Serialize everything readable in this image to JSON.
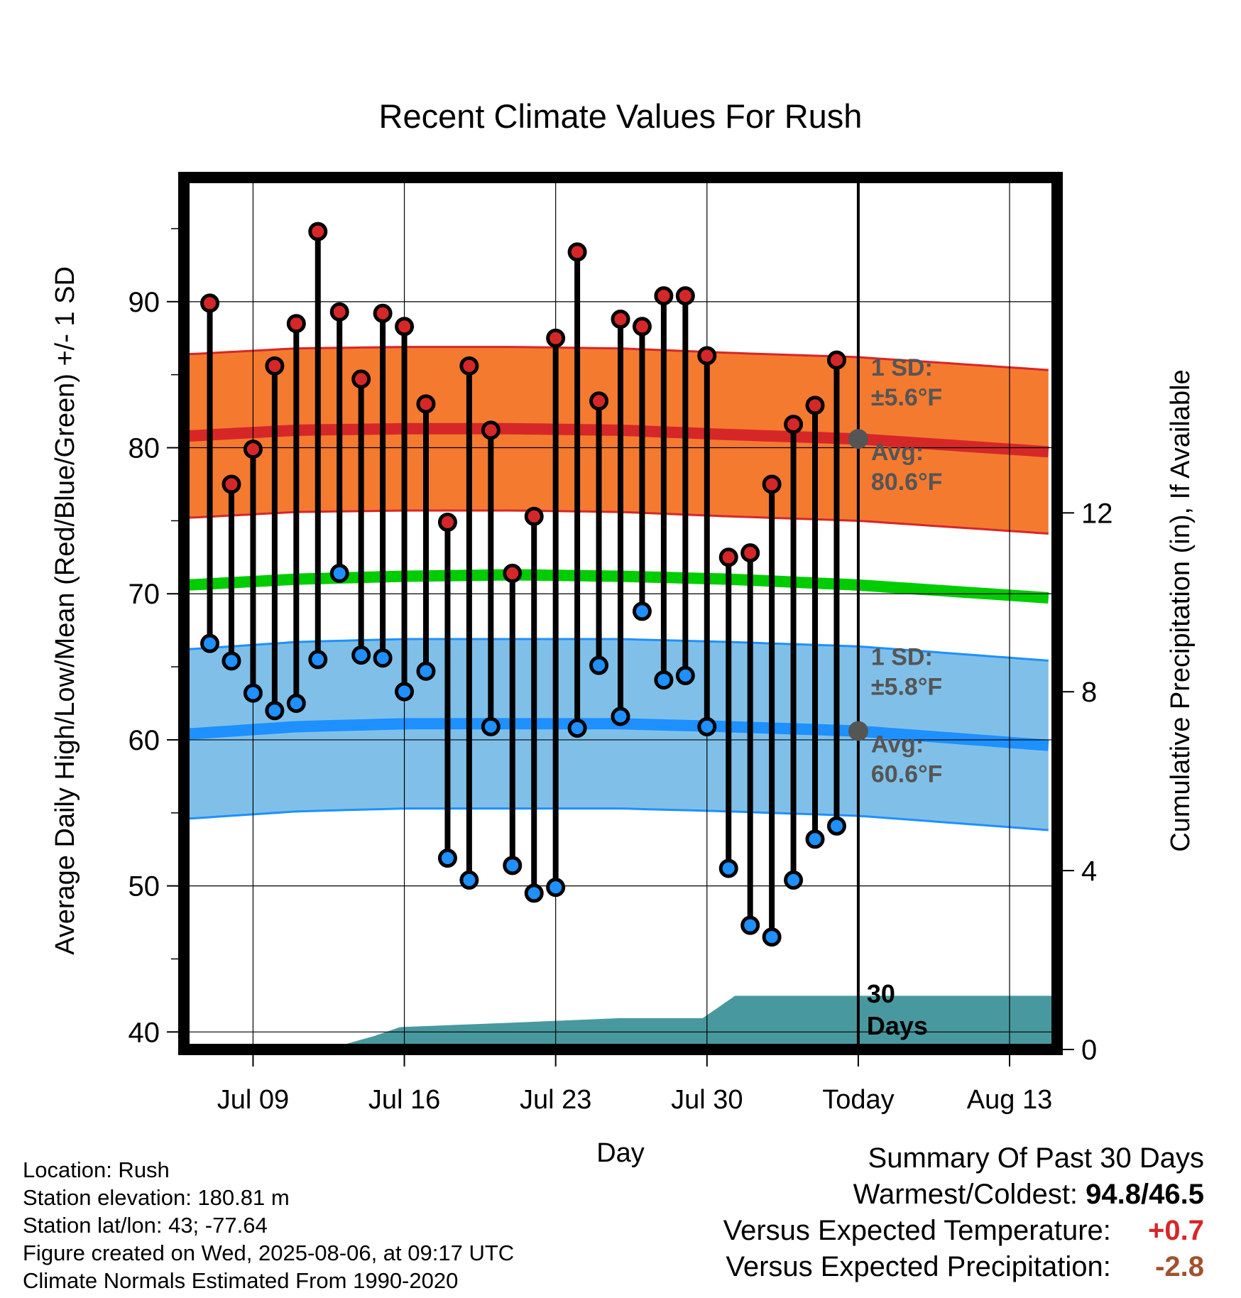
{
  "chart_data": {
    "type": "line",
    "title": "Recent Climate Values For Rush",
    "xlabel": "Day",
    "ylabel": "Average Daily High/Low/Mean (Red/Blue/Green) +/- 1 SD",
    "ylabel_right": "Cumulative Precipitation (in), If Available",
    "x_ticks": [
      {
        "day": 3,
        "label": "Jul 09"
      },
      {
        "day": 10,
        "label": "Jul 16"
      },
      {
        "day": 17,
        "label": "Jul 23"
      },
      {
        "day": 24,
        "label": "Jul 30"
      },
      {
        "day": 31,
        "label": "Today"
      },
      {
        "day": 38,
        "label": "Aug 13"
      }
    ],
    "xlim": [
      -0.2,
      40.2
    ],
    "ylim": [
      38.8,
      98.5
    ],
    "y_ticks": [
      40,
      50,
      60,
      70,
      80,
      90
    ],
    "y2lim": [
      0,
      19.5
    ],
    "y2_ticks": [
      0,
      4,
      8,
      12
    ],
    "grid": true,
    "today_day": 31,
    "today_label": "30\nDays",
    "high_temps": [
      89.9,
      77.5,
      79.9,
      85.6,
      88.5,
      94.8,
      89.3,
      84.7,
      89.2,
      88.3,
      83.0,
      74.9,
      85.6,
      81.2,
      71.4,
      75.3,
      87.5,
      93.4,
      83.2,
      88.8,
      88.3,
      90.4,
      90.4,
      86.3,
      72.5,
      72.8,
      77.5,
      81.6,
      82.9,
      86.0
    ],
    "low_temps": [
      66.6,
      65.4,
      63.2,
      62.0,
      62.5,
      65.5,
      71.4,
      65.8,
      65.6,
      63.3,
      64.7,
      51.9,
      50.4,
      60.9,
      51.4,
      49.5,
      49.9,
      60.8,
      65.1,
      61.6,
      68.8,
      64.1,
      64.4,
      60.9,
      51.2,
      47.3,
      46.5,
      50.4,
      53.2,
      54.1
    ],
    "normal_high": {
      "days": [
        0,
        5,
        10,
        15,
        20,
        25,
        31,
        40
      ],
      "mean": [
        80.8,
        81.2,
        81.3,
        81.3,
        81.2,
        80.9,
        80.6,
        79.7
      ],
      "sd": 5.6
    },
    "normal_low": {
      "days": [
        0,
        5,
        10,
        15,
        20,
        25,
        31,
        40
      ],
      "mean": [
        60.4,
        60.9,
        61.1,
        61.1,
        61.1,
        60.9,
        60.6,
        59.6
      ],
      "sd": 5.8
    },
    "normal_mean": {
      "days": [
        0,
        5,
        10,
        15,
        20,
        25,
        31,
        40
      ],
      "values": [
        70.6,
        71.0,
        71.2,
        71.3,
        71.2,
        71.0,
        70.6,
        69.7
      ]
    },
    "precip_cumulative": {
      "days": [
        0,
        6.4,
        8.6,
        9.8,
        15,
        20,
        23.8,
        25.3,
        40.2
      ],
      "values": [
        0,
        0,
        0.3,
        0.5,
        0.6,
        0.7,
        0.7,
        1.2,
        1.2
      ]
    },
    "annotations": {
      "high_sd": "1 SD:",
      "high_sd_value": "±5.6°F",
      "high_avg": "Avg:",
      "high_avg_value": "80.6°F",
      "low_sd": "1 SD:",
      "low_sd_value": "±5.8°F",
      "low_avg": "Avg:",
      "low_avg_value": "60.6°F"
    },
    "colors": {
      "high_band": "#f47a30",
      "high_line": "#d62728",
      "high_point": "#d62728",
      "low_band": "#80c0e8",
      "low_line": "#1e90ff",
      "low_point": "#1e90ff",
      "mean_line": "#00cc00",
      "precip": "#48999f",
      "annotation": "#555555"
    }
  },
  "info": {
    "location": "Location: Rush",
    "elevation": "Station elevation: 180.81 m",
    "latlon": "Station lat/lon: 43; -77.64",
    "created": "Figure created on Wed, 2025-08-06, at 09:17 UTC",
    "normals": "Climate Normals Estimated From 1990-2020"
  },
  "summary": {
    "title": "Summary Of Past 30 Days",
    "warm_cold_label": "Warmest/Coldest:",
    "warm_cold_value": "94.8/46.5",
    "temp_label": "Versus Expected Temperature:",
    "temp_value": "+0.7",
    "precip_label": "Versus Expected Precipitation:",
    "precip_value": "-2.8"
  }
}
